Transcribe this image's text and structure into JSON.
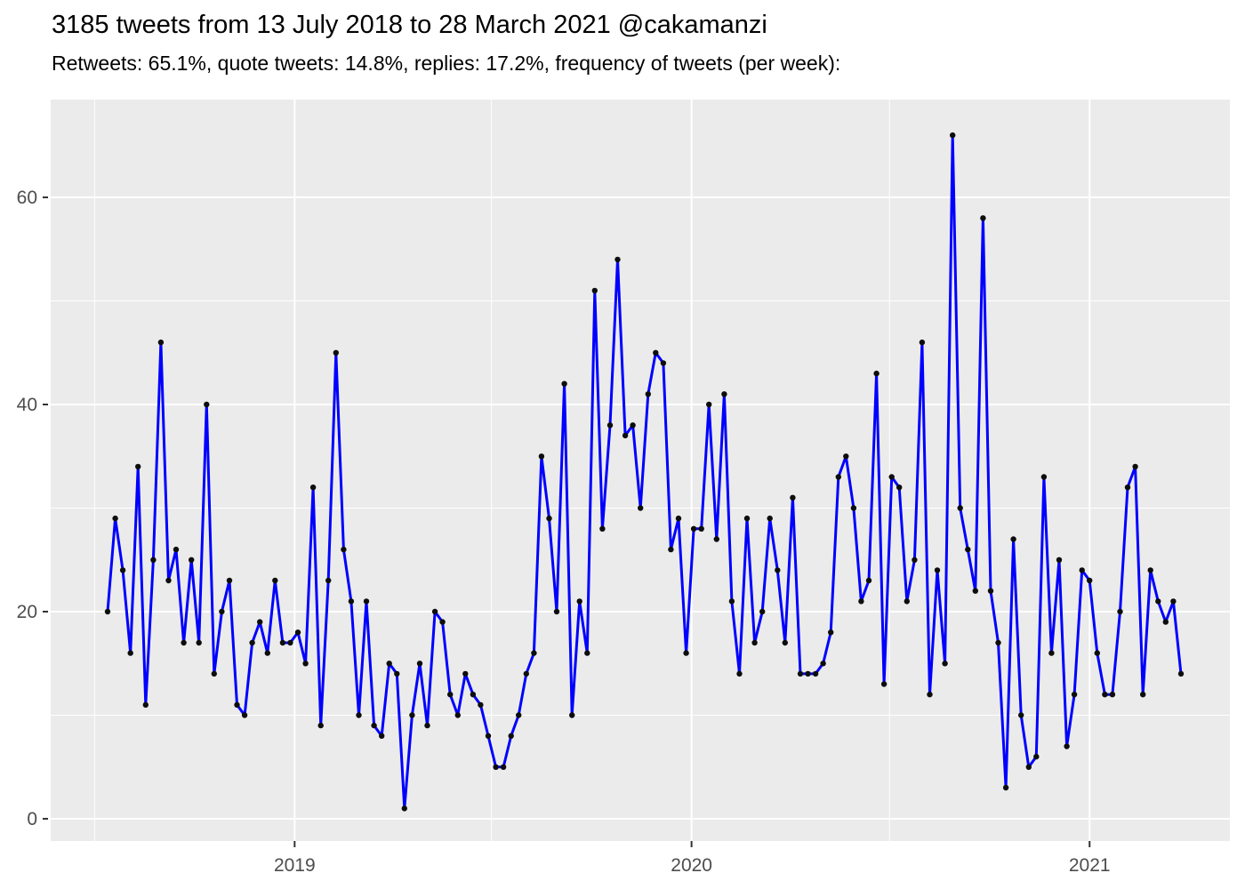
{
  "header": {
    "title": "3185 tweets from 13 July 2018 to 28 March 2021 @cakamanzi",
    "subtitle": "Retweets: 65.1%, quote tweets: 14.8%, replies: 17.2%, frequency of tweets (per week):"
  },
  "stats": {
    "total_tweets": "3185",
    "date_range": "13 July 2018 to 28 March 2021",
    "account": "@cakamanzi",
    "retweets_pct": "65.1%",
    "quote_tweets_pct": "14.8%",
    "replies_pct": "17.2%"
  },
  "chart_data": {
    "type": "line",
    "title": "3185 tweets from 13 July 2018 to 28 March 2021 @cakamanzi",
    "subtitle": "Retweets: 65.1%, quote tweets: 14.8%, replies: 17.2%, frequency of tweets (per week):",
    "xlabel": "",
    "ylabel": "",
    "x_unit": "week",
    "week_start": "2018-07-13",
    "week_end": "2021-03-28",
    "grid": "on",
    "legend": "none",
    "ylim": [
      -2.2,
      69.3
    ],
    "y_major_ticks": [
      0,
      20,
      40,
      60
    ],
    "y_minor_ticks": [
      10,
      30,
      50
    ],
    "x_ticks": [
      {
        "label": "2019",
        "week_index": 24.57
      },
      {
        "label": "2020",
        "week_index": 76.71
      },
      {
        "label": "2021",
        "week_index": 129.0
      }
    ],
    "x_minor_week_indices": [
      -1.71,
      50.43,
      102.71
    ],
    "values": [
      20,
      29,
      24,
      16,
      34,
      11,
      25,
      46,
      23,
      26,
      17,
      25,
      17,
      40,
      14,
      20,
      23,
      11,
      10,
      17,
      19,
      16,
      23,
      17,
      17,
      18,
      15,
      32,
      9,
      23,
      45,
      26,
      21,
      10,
      21,
      9,
      8,
      15,
      14,
      1,
      10,
      15,
      9,
      20,
      19,
      12,
      10,
      14,
      12,
      11,
      8,
      5,
      5,
      8,
      10,
      14,
      16,
      35,
      29,
      20,
      42,
      10,
      21,
      16,
      51,
      28,
      38,
      54,
      37,
      38,
      30,
      41,
      45,
      44,
      26,
      29,
      16,
      28,
      28,
      40,
      27,
      41,
      21,
      14,
      29,
      17,
      20,
      29,
      24,
      17,
      31,
      14,
      14,
      14,
      15,
      18,
      33,
      35,
      30,
      21,
      23,
      43,
      13,
      33,
      32,
      21,
      25,
      46,
      12,
      24,
      15,
      66,
      30,
      26,
      22,
      58,
      22,
      17,
      3,
      27,
      10,
      5,
      6,
      33,
      16,
      25,
      7,
      12,
      24,
      23,
      16,
      12,
      12,
      20,
      32,
      34,
      12,
      24,
      21,
      19,
      21,
      14
    ],
    "colors": {
      "line": "#0000FF",
      "point": "#0d0d0d",
      "panel_background": "#EBEBEB",
      "grid_major": "#FFFFFF",
      "grid_minor": "#FFFFFF",
      "tick_text": "#4d4d4d",
      "tick_mark": "#333333",
      "outer_background": "#FFFFFF",
      "title_text": "#000000"
    }
  }
}
